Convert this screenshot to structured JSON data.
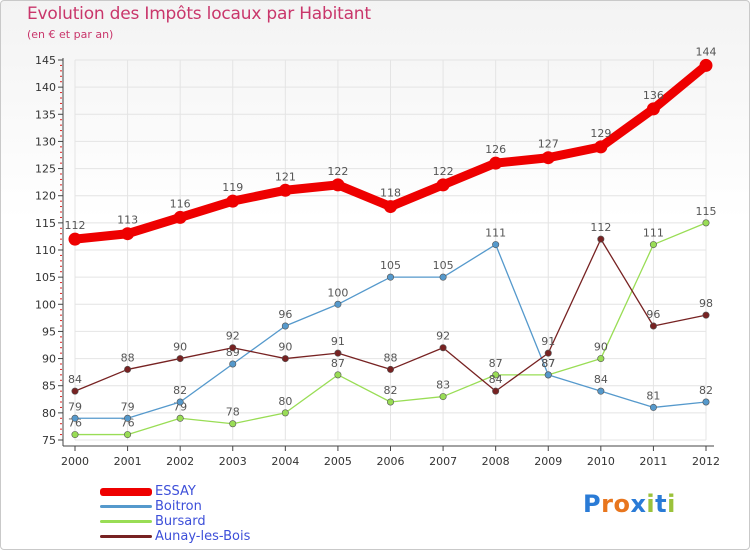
{
  "chart_data": {
    "type": "line",
    "title": "Evolution des Impôts locaux par Habitant",
    "subtitle": "(en € et par an)",
    "x": [
      "2000",
      "2001",
      "2002",
      "2003",
      "2004",
      "2005",
      "2006",
      "2007",
      "2008",
      "2009",
      "2010",
      "2011",
      "2012"
    ],
    "ylim": [
      75,
      145
    ],
    "yticks": [
      75,
      80,
      85,
      90,
      95,
      100,
      105,
      110,
      115,
      120,
      125,
      130,
      135,
      140,
      145
    ],
    "grid": true,
    "legend_position": "bottom-left",
    "series": [
      {
        "name": "Bursard",
        "color": "#99dd55",
        "values": [
          76,
          76,
          79,
          78,
          80,
          87,
          82,
          83,
          87,
          87,
          90,
          111,
          115
        ]
      },
      {
        "name": "Boitron",
        "color": "#5599cc",
        "values": [
          79,
          79,
          82,
          89,
          96,
          100,
          105,
          105,
          111,
          87,
          84,
          81,
          82
        ]
      },
      {
        "name": "Aunay-les-Bois",
        "color": "#772222",
        "values": [
          84,
          88,
          90,
          92,
          90,
          91,
          88,
          92,
          84,
          91,
          112,
          96,
          98
        ]
      },
      {
        "name": "ESSAY",
        "color": "#ee0000",
        "values": [
          112,
          113,
          116,
          119,
          121,
          122,
          118,
          122,
          126,
          127,
          129,
          136,
          144
        ]
      }
    ],
    "legend_order": [
      "ESSAY",
      "Boitron",
      "Bursard",
      "Aunay-les-Bois"
    ]
  },
  "logo": {
    "letters": [
      "P",
      "r",
      "o",
      "x",
      "i",
      "t",
      "i"
    ],
    "colors": [
      "#2a7bd6",
      "#e8761e",
      "#e8761e",
      "#2a7bd6",
      "#9bc23b",
      "#2a7bd6",
      "#9bc23b"
    ]
  }
}
